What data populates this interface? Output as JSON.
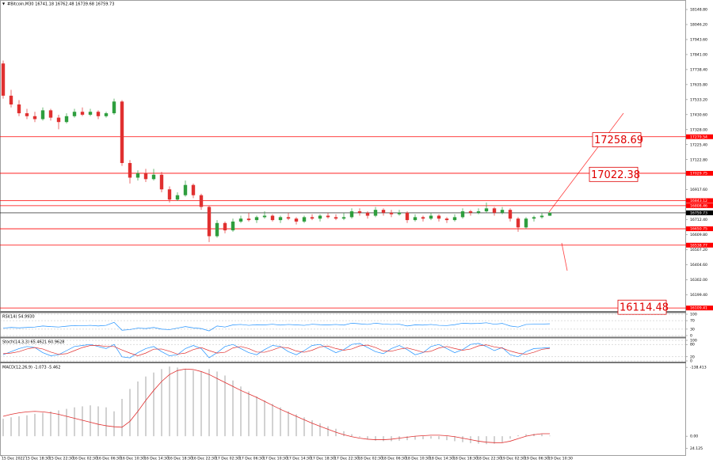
{
  "chart_data": [
    {
      "type": "candlestick",
      "title": "#Bitcoin,M30 16741.18 16762.48 16739.68 16759.73",
      "up_color": "#2e9e3e",
      "down_color": "#e03030",
      "ylim": [
        16094,
        18203
      ],
      "yticks": [
        {
          "value": 18148.8,
          "label": "18148.80"
        },
        {
          "value": 18046.2,
          "label": "18046.20"
        },
        {
          "value": 17943.6,
          "label": "17943.60"
        },
        {
          "value": 17841,
          "label": "17841.00"
        },
        {
          "value": 17738.4,
          "label": "17738.40"
        },
        {
          "value": 17635.8,
          "label": "17635.80"
        },
        {
          "value": 17533.2,
          "label": "17533.20"
        },
        {
          "value": 17430.6,
          "label": "17430.60"
        },
        {
          "value": 17328,
          "label": "17328.00"
        },
        {
          "value": 17225.4,
          "label": "17225.40"
        },
        {
          "value": 17122.8,
          "label": "17122.80"
        },
        {
          "value": 16917.6,
          "label": "16917.60"
        },
        {
          "value": 16712.4,
          "label": "16712.40"
        },
        {
          "value": 16609.8,
          "label": "16609.80"
        },
        {
          "value": 16507.2,
          "label": "16507.20"
        },
        {
          "value": 16404.6,
          "label": "16404.60"
        },
        {
          "value": 16302,
          "label": "16302.00"
        },
        {
          "value": 16199.4,
          "label": "16199.40"
        }
      ],
      "levels": [
        17279.54,
        17029.75,
        16843.12,
        16808.46,
        16650.75,
        16538.77,
        16109.41
      ],
      "level_color": "#ff0000",
      "current_price": 16759.73,
      "targets": [
        17258.69,
        17022.38,
        16114.48
      ],
      "x_labels": [
        "15 Dec 2022",
        "15 Dec 18:30",
        "15 Dec 22:30",
        "16 Dec 02:30",
        "16 Dec 06:30",
        "16 Dec 10:30",
        "16 Dec 14:30",
        "16 Dec 18:30",
        "16 Dec 22:30",
        "17 Dec 02:30",
        "17 Dec 06:30",
        "17 Dec 10:30",
        "17 Dec 14:30",
        "17 Dec 18:30",
        "17 Dec 22:30",
        "18 Dec 02:30",
        "18 Dec 06:30",
        "18 Dec 10:30",
        "18 Dec 14:30",
        "18 Dec 18:30",
        "18 Dec 22:30",
        "19 Dec 02:30",
        "19 Dec 06:30",
        "19 Dec 10:30"
      ],
      "ohlc": [
        [
          17780,
          17800,
          17540,
          17560
        ],
        [
          17560,
          17600,
          17480,
          17500
        ],
        [
          17500,
          17530,
          17420,
          17440
        ],
        [
          17440,
          17470,
          17400,
          17420
        ],
        [
          17420,
          17450,
          17380,
          17400
        ],
        [
          17400,
          17480,
          17390,
          17460
        ],
        [
          17460,
          17470,
          17390,
          17410
        ],
        [
          17410,
          17430,
          17330,
          17380
        ],
        [
          17380,
          17440,
          17370,
          17420
        ],
        [
          17420,
          17470,
          17410,
          17450
        ],
        [
          17450,
          17480,
          17420,
          17430
        ],
        [
          17430,
          17470,
          17420,
          17450
        ],
        [
          17450,
          17460,
          17400,
          17420
        ],
        [
          17420,
          17450,
          17410,
          17440
        ],
        [
          17440,
          17540,
          17430,
          17520
        ],
        [
          17520,
          17530,
          17080,
          17100
        ],
        [
          17100,
          17120,
          16960,
          17000
        ],
        [
          17000,
          17050,
          16980,
          17030
        ],
        [
          17030,
          17060,
          16970,
          16990
        ],
        [
          16990,
          17060,
          16980,
          17020
        ],
        [
          17020,
          17040,
          16900,
          16920
        ],
        [
          16920,
          16940,
          16830,
          16850
        ],
        [
          16850,
          16900,
          16840,
          16880
        ],
        [
          16880,
          16980,
          16870,
          16950
        ],
        [
          16950,
          16960,
          16860,
          16880
        ],
        [
          16880,
          16890,
          16780,
          16800
        ],
        [
          16800,
          16810,
          16560,
          16600
        ],
        [
          16600,
          16710,
          16590,
          16690
        ],
        [
          16690,
          16700,
          16620,
          16640
        ],
        [
          16640,
          16720,
          16630,
          16700
        ],
        [
          16700,
          16740,
          16690,
          16720
        ],
        [
          16720,
          16760,
          16700,
          16710
        ],
        [
          16710,
          16740,
          16690,
          16730
        ],
        [
          16730,
          16770,
          16720,
          16740
        ],
        [
          16740,
          16750,
          16700,
          16710
        ],
        [
          16710,
          16740,
          16690,
          16730
        ],
        [
          16730,
          16760,
          16710,
          16720
        ],
        [
          16720,
          16730,
          16680,
          16700
        ],
        [
          16700,
          16740,
          16690,
          16730
        ],
        [
          16730,
          16750,
          16710,
          16720
        ],
        [
          16720,
          16750,
          16700,
          16740
        ],
        [
          16740,
          16760,
          16720,
          16730
        ],
        [
          16730,
          16750,
          16710,
          16720
        ],
        [
          16720,
          16760,
          16710,
          16730
        ],
        [
          16730,
          16790,
          16720,
          16770
        ],
        [
          16770,
          16790,
          16740,
          16760
        ],
        [
          16760,
          16770,
          16720,
          16740
        ],
        [
          16740,
          16800,
          16730,
          16780
        ],
        [
          16780,
          16790,
          16740,
          16760
        ],
        [
          16760,
          16780,
          16730,
          16750
        ],
        [
          16750,
          16780,
          16740,
          16760
        ],
        [
          16760,
          16770,
          16690,
          16710
        ],
        [
          16710,
          16750,
          16700,
          16730
        ],
        [
          16730,
          16740,
          16700,
          16720
        ],
        [
          16720,
          16760,
          16710,
          16740
        ],
        [
          16740,
          16750,
          16700,
          16720
        ],
        [
          16720,
          16730,
          16690,
          16710
        ],
        [
          16710,
          16750,
          16700,
          16730
        ],
        [
          16730,
          16790,
          16720,
          16770
        ],
        [
          16770,
          16780,
          16740,
          16760
        ],
        [
          16760,
          16790,
          16750,
          16770
        ],
        [
          16770,
          16830,
          16760,
          16790
        ],
        [
          16790,
          16800,
          16740,
          16760
        ],
        [
          16760,
          16800,
          16750,
          16780
        ],
        [
          16780,
          16790,
          16700,
          16720
        ],
        [
          16720,
          16730,
          16630,
          16660
        ],
        [
          16660,
          16730,
          16650,
          16720
        ],
        [
          16720,
          16740,
          16700,
          16730
        ],
        [
          16730,
          16760,
          16720,
          16740
        ],
        [
          16740,
          16762,
          16739,
          16760
        ]
      ]
    },
    {
      "type": "line",
      "title": "RSI(14) 54.9930",
      "color": "#1e90ff",
      "ylim": [
        0,
        100
      ],
      "yticks": [
        100,
        70,
        30,
        0
      ],
      "values": [
        35,
        38,
        36,
        38,
        40,
        45,
        42,
        40,
        44,
        47,
        46,
        48,
        45,
        48,
        62,
        25,
        28,
        35,
        33,
        38,
        30,
        28,
        35,
        42,
        36,
        33,
        22,
        45,
        40,
        50,
        52,
        48,
        51,
        50,
        53,
        49,
        52,
        50,
        48,
        53,
        51,
        50,
        52,
        49,
        58,
        55,
        52,
        58,
        54,
        52,
        53,
        45,
        50,
        49,
        52,
        48,
        47,
        51,
        58,
        56,
        57,
        60,
        53,
        57,
        45,
        40,
        52,
        53,
        54,
        55
      ]
    },
    {
      "type": "line",
      "title": "Stoch(14,3,3) 65.4621 60.9628",
      "ylim": [
        0,
        100
      ],
      "yticks": [
        100,
        80,
        20,
        0
      ],
      "series": [
        {
          "color": "#1e90ff",
          "values": [
            30,
            45,
            60,
            70,
            65,
            40,
            25,
            30,
            50,
            70,
            75,
            80,
            70,
            60,
            80,
            20,
            15,
            40,
            60,
            70,
            45,
            25,
            30,
            60,
            75,
            60,
            15,
            40,
            70,
            80,
            60,
            40,
            30,
            55,
            75,
            70,
            45,
            30,
            50,
            75,
            80,
            60,
            40,
            55,
            80,
            85,
            65,
            45,
            35,
            60,
            75,
            55,
            30,
            40,
            70,
            80,
            60,
            40,
            55,
            80,
            85,
            70,
            50,
            65,
            30,
            20,
            45,
            60,
            62,
            65
          ]
        },
        {
          "color": "#e03030",
          "values": [
            35,
            38,
            45,
            58,
            65,
            58,
            43,
            32,
            35,
            50,
            65,
            75,
            75,
            70,
            70,
            53,
            38,
            25,
            38,
            57,
            58,
            47,
            33,
            38,
            55,
            65,
            50,
            38,
            42,
            63,
            70,
            60,
            43,
            42,
            53,
            67,
            63,
            48,
            42,
            52,
            68,
            72,
            60,
            52,
            58,
            73,
            77,
            65,
            48,
            47,
            57,
            63,
            53,
            42,
            47,
            63,
            70,
            60,
            52,
            58,
            73,
            78,
            68,
            62,
            48,
            38,
            32,
            42,
            56,
            61
          ]
        }
      ]
    },
    {
      "type": "macd",
      "title": "MACD(12,26,9) -1.073 -5.462",
      "ylim": [
        30,
        -145
      ],
      "yticks": [
        24.125,
        {
          "value": 0,
          "label": "0.00"
        },
        -138.413
      ],
      "hist_color": "#b4b4b4",
      "signal_color": "#e03030",
      "histogram": [
        -35,
        -38,
        -40,
        -42,
        -45,
        -47,
        -50,
        -52,
        -55,
        -58,
        -60,
        -62,
        -60,
        -58,
        -50,
        -75,
        -95,
        -110,
        -120,
        -128,
        -135,
        -140,
        -138,
        -135,
        -132,
        -130,
        -135,
        -130,
        -122,
        -112,
        -100,
        -90,
        -80,
        -72,
        -65,
        -58,
        -50,
        -44,
        -38,
        -32,
        -26,
        -20,
        -15,
        -10,
        -4,
        2,
        6,
        9,
        10,
        10,
        9,
        8,
        7,
        6,
        5,
        6,
        8,
        10,
        12,
        14,
        15,
        16,
        15,
        12,
        5,
        -2,
        -4,
        -5,
        -4,
        -1
      ],
      "signal": [
        -40,
        -44,
        -47,
        -49,
        -50,
        -49,
        -47,
        -44,
        -40,
        -36,
        -32,
        -28,
        -24,
        -21,
        -19,
        -18,
        -30,
        -50,
        -72,
        -92,
        -110,
        -124,
        -132,
        -135,
        -134,
        -130,
        -124,
        -116,
        -108,
        -100,
        -92,
        -85,
        -78,
        -70,
        -62,
        -54,
        -47,
        -40,
        -33,
        -26,
        -20,
        -14,
        -8,
        -3,
        1,
        4,
        6,
        7,
        7,
        6,
        4,
        2,
        0,
        -1,
        -2,
        -2,
        -1,
        1,
        4,
        7,
        10,
        12,
        13,
        13,
        10,
        5,
        0,
        -3,
        -5,
        -5
      ]
    }
  ]
}
